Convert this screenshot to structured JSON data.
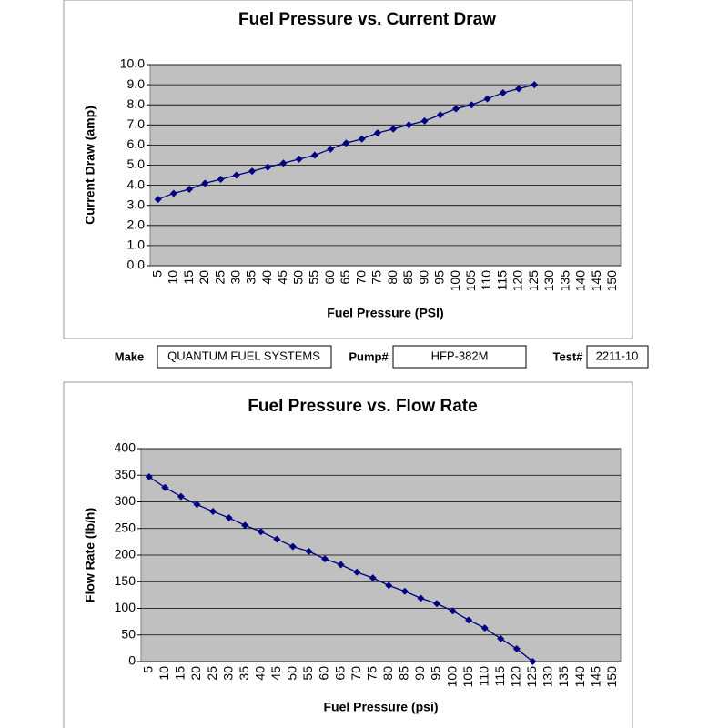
{
  "chart_data": [
    {
      "type": "line",
      "title": "Fuel Pressure vs. Current Draw",
      "x_label": "Fuel Pressure (PSI)",
      "y_label": "Current Draw (amp)",
      "categories": [
        5,
        10,
        15,
        20,
        25,
        30,
        35,
        40,
        45,
        50,
        55,
        60,
        65,
        70,
        75,
        80,
        85,
        90,
        95,
        100,
        105,
        110,
        115,
        120,
        125,
        130,
        135,
        140,
        145,
        150
      ],
      "series": [
        {
          "color": "#000080",
          "values": [
            3.3,
            3.6,
            3.8,
            4.1,
            4.3,
            4.5,
            4.7,
            4.9,
            5.1,
            5.3,
            5.5,
            5.8,
            6.1,
            6.3,
            6.6,
            6.8,
            7.0,
            7.2,
            7.5,
            7.8,
            8.0,
            8.3,
            8.6,
            8.8,
            9.0,
            null,
            null,
            null,
            null,
            null
          ]
        }
      ],
      "ylim": [
        0,
        10
      ],
      "yticks": [
        {
          "value": 0,
          "label": "0.0"
        },
        {
          "value": 1,
          "label": "1.0"
        },
        {
          "value": 2,
          "label": "2.0"
        },
        {
          "value": 3,
          "label": "3.0"
        },
        {
          "value": 4,
          "label": "4.0"
        },
        {
          "value": 5,
          "label": "5.0"
        },
        {
          "value": 6,
          "label": "6.0"
        },
        {
          "value": 7,
          "label": "7.0"
        },
        {
          "value": 8,
          "label": "8.0"
        },
        {
          "value": 9,
          "label": "9.0"
        },
        {
          "value": 10,
          "label": "10.0"
        }
      ],
      "grid": true
    },
    {
      "type": "line",
      "title": "Fuel Pressure vs. Flow Rate",
      "x_label": "Fuel Pressure (psi)",
      "y_label": "Flow Rate (lb/h)",
      "categories": [
        5,
        10,
        15,
        20,
        25,
        30,
        35,
        40,
        45,
        50,
        55,
        60,
        65,
        70,
        75,
        80,
        85,
        90,
        95,
        100,
        105,
        110,
        115,
        120,
        125,
        130,
        135,
        140,
        145,
        150
      ],
      "series": [
        {
          "color": "#000080",
          "values": [
            347,
            327,
            310,
            295,
            282,
            270,
            256,
            244,
            230,
            216,
            207,
            193,
            182,
            168,
            157,
            143,
            132,
            119,
            109,
            95,
            78,
            63,
            43,
            24,
            0,
            null,
            null,
            null,
            null,
            null
          ]
        }
      ],
      "ylim": [
        0,
        400
      ],
      "yticks": [
        0,
        50,
        100,
        150,
        200,
        250,
        300,
        350,
        400
      ],
      "grid": true
    }
  ],
  "form": {
    "make_label": "Make",
    "make": "QUANTUM FUEL SYSTEMS",
    "pump_label": "Pump#",
    "pump": "HFP-382M",
    "test_label": "Test#",
    "test": "2211-10"
  }
}
